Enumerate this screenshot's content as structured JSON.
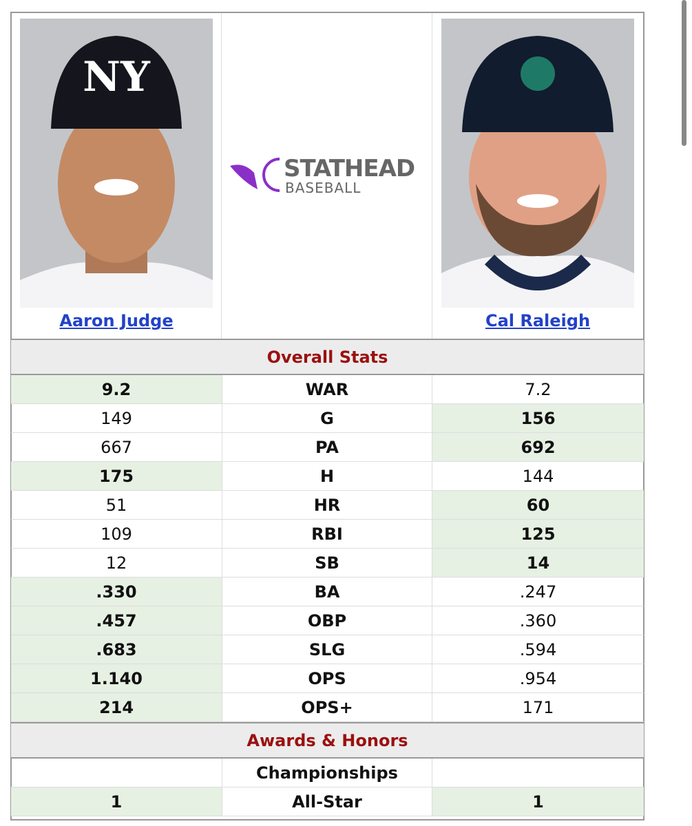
{
  "players": [
    {
      "name": "Aaron Judge"
    },
    {
      "name": "Cal Raleigh"
    }
  ],
  "logo": {
    "line1": "STATHEAD",
    "line2": "BASEBALL"
  },
  "sections": [
    {
      "title": "Overall Stats",
      "rows": [
        {
          "stat": "WAR",
          "left": "9.2",
          "right": "7.2",
          "bold": [
            true,
            false
          ]
        },
        {
          "stat": "G",
          "left": "149",
          "right": "156",
          "bold": [
            false,
            true
          ]
        },
        {
          "stat": "PA",
          "left": "667",
          "right": "692",
          "bold": [
            false,
            true
          ]
        },
        {
          "stat": "H",
          "left": "175",
          "right": "144",
          "bold": [
            true,
            false
          ]
        },
        {
          "stat": "HR",
          "left": "51",
          "right": "60",
          "bold": [
            false,
            true
          ]
        },
        {
          "stat": "RBI",
          "left": "109",
          "right": "125",
          "bold": [
            false,
            true
          ]
        },
        {
          "stat": "SB",
          "left": "12",
          "right": "14",
          "bold": [
            false,
            true
          ]
        },
        {
          "stat": "BA",
          "left": ".330",
          "right": ".247",
          "bold": [
            true,
            false
          ]
        },
        {
          "stat": "OBP",
          "left": ".457",
          "right": ".360",
          "bold": [
            true,
            false
          ]
        },
        {
          "stat": "SLG",
          "left": ".683",
          "right": ".594",
          "bold": [
            true,
            false
          ]
        },
        {
          "stat": "OPS",
          "left": "1.140",
          "right": ".954",
          "bold": [
            true,
            false
          ]
        },
        {
          "stat": "OPS+",
          "left": "214",
          "right": "171",
          "bold": [
            true,
            false
          ]
        }
      ]
    },
    {
      "title": "Awards & Honors",
      "rows": [
        {
          "stat": "Championships",
          "left": null,
          "right": null,
          "bold": [
            false,
            false
          ]
        },
        {
          "stat": "All-Star",
          "left": "1",
          "right": "1",
          "bold": [
            true,
            true
          ]
        }
      ]
    }
  ]
}
